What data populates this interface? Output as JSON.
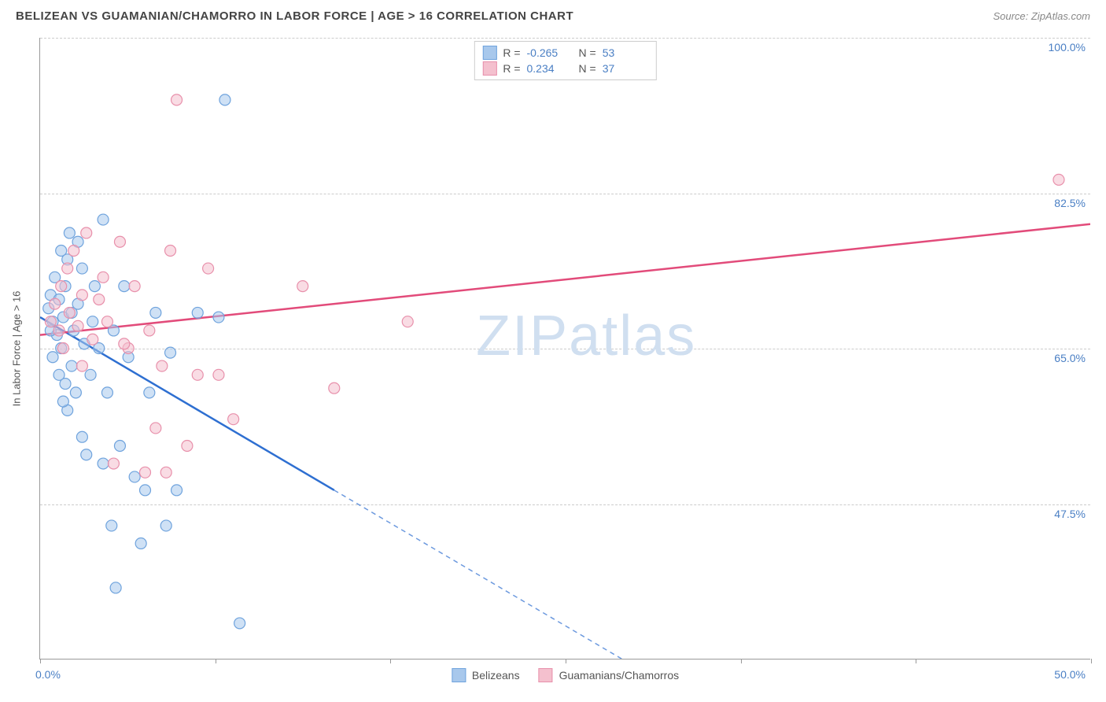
{
  "title": "BELIZEAN VS GUAMANIAN/CHAMORRO IN LABOR FORCE | AGE > 16 CORRELATION CHART",
  "source": "Source: ZipAtlas.com",
  "y_axis_title": "In Labor Force | Age > 16",
  "watermark_left": "ZIP",
  "watermark_right": "atlas",
  "chart": {
    "type": "scatter-with-regression",
    "xlim": [
      0,
      50
    ],
    "ylim": [
      30,
      100
    ],
    "x_ticks": [
      0,
      8.33,
      16.67,
      25,
      33.33,
      41.67,
      50
    ],
    "x_tick_labels": {
      "first": "0.0%",
      "last": "50.0%"
    },
    "y_gridlines": [
      47.5,
      65.0,
      82.5,
      100.0
    ],
    "y_tick_labels": [
      "47.5%",
      "65.0%",
      "82.5%",
      "100.0%"
    ],
    "background_color": "#ffffff",
    "grid_color": "#cccccc",
    "axis_color": "#999999",
    "label_color": "#4a7fc4",
    "point_radius": 7,
    "point_opacity": 0.55,
    "line_width": 2.5
  },
  "series": [
    {
      "name": "Belizeans",
      "color_fill": "#a8c8ec",
      "color_stroke": "#6fa3dd",
      "regression_color": "#2e6fd1",
      "R": "-0.265",
      "N": "53",
      "regression": {
        "x1": 0,
        "y1": 68.5,
        "x2_solid": 14,
        "y2_solid": 49,
        "x2_dash": 32,
        "y2_dash": 24
      },
      "points": [
        [
          0.4,
          69.5
        ],
        [
          0.5,
          71
        ],
        [
          0.6,
          68
        ],
        [
          0.7,
          73
        ],
        [
          0.8,
          66.5
        ],
        [
          0.9,
          70.5
        ],
        [
          1.0,
          76
        ],
        [
          1.0,
          65
        ],
        [
          1.1,
          68.5
        ],
        [
          1.2,
          72
        ],
        [
          1.2,
          61
        ],
        [
          1.3,
          58
        ],
        [
          1.4,
          78
        ],
        [
          1.5,
          69
        ],
        [
          1.5,
          63
        ],
        [
          1.6,
          67
        ],
        [
          1.7,
          60
        ],
        [
          1.8,
          70
        ],
        [
          2.0,
          74
        ],
        [
          2.0,
          55
        ],
        [
          2.2,
          53
        ],
        [
          2.4,
          62
        ],
        [
          2.5,
          68
        ],
        [
          2.6,
          72
        ],
        [
          2.8,
          65
        ],
        [
          3.0,
          79.5
        ],
        [
          3.0,
          52
        ],
        [
          3.2,
          60
        ],
        [
          3.4,
          45
        ],
        [
          3.5,
          67
        ],
        [
          3.6,
          38
        ],
        [
          3.8,
          54
        ],
        [
          4.0,
          72
        ],
        [
          4.2,
          64
        ],
        [
          4.5,
          50.5
        ],
        [
          4.8,
          43
        ],
        [
          5.0,
          49
        ],
        [
          5.2,
          60
        ],
        [
          5.5,
          69
        ],
        [
          6.0,
          45
        ],
        [
          6.5,
          49
        ],
        [
          6.2,
          64.5
        ],
        [
          7.5,
          69
        ],
        [
          8.8,
          93
        ],
        [
          8.5,
          68.5
        ],
        [
          9.5,
          34
        ],
        [
          1.3,
          75
        ],
        [
          1.8,
          77
        ],
        [
          2.1,
          65.5
        ],
        [
          0.6,
          64
        ],
        [
          0.9,
          62
        ],
        [
          1.1,
          59
        ],
        [
          0.5,
          67
        ]
      ]
    },
    {
      "name": "Guamanians/Chamorros",
      "color_fill": "#f4c0ce",
      "color_stroke": "#e890ab",
      "regression_color": "#e24b7a",
      "R": "0.234",
      "N": "37",
      "regression": {
        "x1": 0,
        "y1": 66.5,
        "x2_solid": 50,
        "y2_solid": 79,
        "x2_dash": 50,
        "y2_dash": 79
      },
      "points": [
        [
          0.5,
          68
        ],
        [
          0.7,
          70
        ],
        [
          0.9,
          67
        ],
        [
          1.0,
          72
        ],
        [
          1.1,
          65
        ],
        [
          1.3,
          74
        ],
        [
          1.4,
          69
        ],
        [
          1.6,
          76
        ],
        [
          1.8,
          67.5
        ],
        [
          2.0,
          71
        ],
        [
          2.0,
          63
        ],
        [
          2.2,
          78
        ],
        [
          2.5,
          66
        ],
        [
          2.8,
          70.5
        ],
        [
          3.0,
          73
        ],
        [
          3.2,
          68
        ],
        [
          3.5,
          52
        ],
        [
          3.8,
          77
        ],
        [
          4.2,
          65
        ],
        [
          4.5,
          72
        ],
        [
          5.0,
          51
        ],
        [
          5.2,
          67
        ],
        [
          5.5,
          56
        ],
        [
          5.8,
          63
        ],
        [
          6.0,
          51
        ],
        [
          6.2,
          76
        ],
        [
          6.5,
          93
        ],
        [
          7.0,
          54
        ],
        [
          7.5,
          62
        ],
        [
          8.0,
          74
        ],
        [
          8.5,
          62
        ],
        [
          9.2,
          57
        ],
        [
          12.5,
          72
        ],
        [
          14.0,
          60.5
        ],
        [
          17.5,
          68
        ],
        [
          48.5,
          84
        ],
        [
          4.0,
          65.5
        ]
      ]
    }
  ],
  "legend_bottom": [
    "Belizeans",
    "Guamanians/Chamorros"
  ]
}
